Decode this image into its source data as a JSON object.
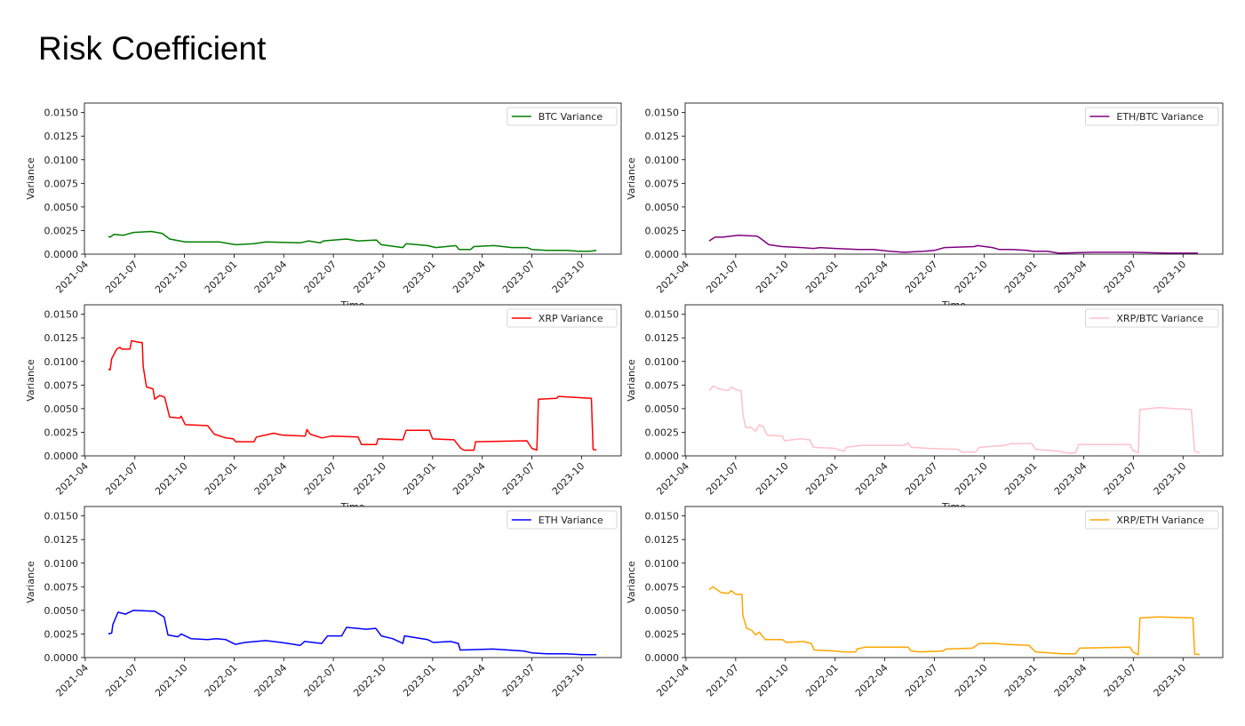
{
  "title": "Risk Coefficient",
  "chart_data": {
    "type": "line",
    "x_unit": "months since 2021-04-01",
    "x_tick_labels": [
      "2021-04",
      "2021-07",
      "2021-10",
      "2022-01",
      "2022-04",
      "2022-07",
      "2022-10",
      "2023-01",
      "2023-04",
      "2023-07",
      "2023-10"
    ],
    "x_tick_values": [
      0,
      3,
      6,
      9,
      12,
      15,
      18,
      21,
      24,
      27,
      30
    ],
    "xlim": [
      -0.05,
      32.4
    ],
    "ylim": [
      0,
      0.016
    ],
    "y_ticks": [
      0,
      0.0025,
      0.005,
      0.0075,
      0.01,
      0.0125,
      0.015
    ],
    "y_tick_labels": [
      "0.0000",
      "0.0025",
      "0.0050",
      "0.0075",
      "0.0100",
      "0.0125",
      "0.0150"
    ],
    "xlabel": "Time",
    "ylabel": "Variance",
    "grid": false,
    "legend_placement": "top-right",
    "panels": [
      {
        "name": "BTC Variance",
        "color": "#008000",
        "show_xlabel": true,
        "points": [
          [
            1.4,
            0.0019
          ],
          [
            1.5,
            0.0018
          ],
          [
            1.74,
            0.0021
          ],
          [
            2.3,
            0.002
          ],
          [
            2.9,
            0.0023
          ],
          [
            4.0,
            0.0024
          ],
          [
            4.65,
            0.0022
          ],
          [
            5.1,
            0.0016
          ],
          [
            6.05,
            0.0013
          ],
          [
            8.1,
            0.0013
          ],
          [
            9.1,
            0.001
          ],
          [
            10.2,
            0.0011
          ],
          [
            10.9,
            0.0013
          ],
          [
            13.0,
            0.0012
          ],
          [
            13.5,
            0.0014
          ],
          [
            14.2,
            0.0012
          ],
          [
            14.4,
            0.0014
          ],
          [
            15.8,
            0.0016
          ],
          [
            16.5,
            0.0014
          ],
          [
            17.6,
            0.0015
          ],
          [
            17.9,
            0.001
          ],
          [
            19.2,
            0.0007
          ],
          [
            19.4,
            0.0011
          ],
          [
            20.7,
            0.0009
          ],
          [
            21.2,
            0.0007
          ],
          [
            22.4,
            0.0009
          ],
          [
            22.6,
            0.0005
          ],
          [
            23.3,
            0.0005
          ],
          [
            23.5,
            0.0008
          ],
          [
            24.7,
            0.0009
          ],
          [
            25.8,
            0.0007
          ],
          [
            26.7,
            0.0007
          ],
          [
            27.0,
            0.0005
          ],
          [
            27.9,
            0.0004
          ],
          [
            29.1,
            0.0004
          ],
          [
            29.8,
            0.0003
          ],
          [
            30.5,
            0.0003
          ],
          [
            30.9,
            0.0004
          ]
        ]
      },
      {
        "name": "ETH/BTC Variance",
        "color": "#800080",
        "show_xlabel": true,
        "points": [
          [
            1.4,
            0.0014
          ],
          [
            1.75,
            0.0018
          ],
          [
            2.2,
            0.0018
          ],
          [
            3.15,
            0.002
          ],
          [
            4.3,
            0.0019
          ],
          [
            4.55,
            0.0016
          ],
          [
            5.0,
            0.001
          ],
          [
            5.8,
            0.0008
          ],
          [
            7.0,
            0.0007
          ],
          [
            7.7,
            0.0006
          ],
          [
            8.1,
            0.0007
          ],
          [
            9.0,
            0.0006
          ],
          [
            10.4,
            0.0005
          ],
          [
            11.3,
            0.0005
          ],
          [
            12.3,
            0.0003
          ],
          [
            13.2,
            0.0002
          ],
          [
            14.35,
            0.0003
          ],
          [
            15.0,
            0.0004
          ],
          [
            15.6,
            0.0007
          ],
          [
            17.4,
            0.0008
          ],
          [
            17.6,
            0.0009
          ],
          [
            18.5,
            0.0007
          ],
          [
            18.9,
            0.0005
          ],
          [
            19.7,
            0.0005
          ],
          [
            20.6,
            0.0004
          ],
          [
            20.9,
            0.0003
          ],
          [
            21.8,
            0.0003
          ],
          [
            22.5,
            0.0001
          ],
          [
            24.5,
            0.0002
          ],
          [
            26.8,
            0.0002
          ],
          [
            29.1,
            0.0001
          ],
          [
            30.9,
            0.0001
          ]
        ]
      },
      {
        "name": "XRP Variance",
        "color": "#ff0000",
        "show_xlabel": true,
        "points": [
          [
            1.4,
            0.0092
          ],
          [
            1.5,
            0.0091
          ],
          [
            1.6,
            0.0103
          ],
          [
            1.9,
            0.0113
          ],
          [
            2.1,
            0.0115
          ],
          [
            2.2,
            0.0113
          ],
          [
            2.7,
            0.0113
          ],
          [
            2.8,
            0.0122
          ],
          [
            3.3,
            0.012
          ],
          [
            3.45,
            0.012
          ],
          [
            3.5,
            0.0095
          ],
          [
            3.7,
            0.0073
          ],
          [
            4.1,
            0.0071
          ],
          [
            4.2,
            0.006
          ],
          [
            4.5,
            0.0064
          ],
          [
            4.8,
            0.0062
          ],
          [
            5.1,
            0.0041
          ],
          [
            5.7,
            0.004
          ],
          [
            5.8,
            0.0042
          ],
          [
            6.05,
            0.0033
          ],
          [
            7.4,
            0.0032
          ],
          [
            7.8,
            0.0023
          ],
          [
            8.5,
            0.0019
          ],
          [
            8.95,
            0.0018
          ],
          [
            9.1,
            0.0015
          ],
          [
            10.2,
            0.0015
          ],
          [
            10.35,
            0.002
          ],
          [
            11.4,
            0.0024
          ],
          [
            11.9,
            0.0022
          ],
          [
            13.3,
            0.0021
          ],
          [
            13.4,
            0.0028
          ],
          [
            13.6,
            0.0023
          ],
          [
            14.3,
            0.0019
          ],
          [
            14.9,
            0.0021
          ],
          [
            16.5,
            0.002
          ],
          [
            16.7,
            0.0012
          ],
          [
            17.6,
            0.0012
          ],
          [
            17.7,
            0.0018
          ],
          [
            19.2,
            0.0017
          ],
          [
            19.4,
            0.0027
          ],
          [
            20.8,
            0.0027
          ],
          [
            21.0,
            0.0018
          ],
          [
            22.3,
            0.0017
          ],
          [
            22.7,
            0.0008
          ],
          [
            22.9,
            0.0006
          ],
          [
            23.5,
            0.0006
          ],
          [
            23.6,
            0.0015
          ],
          [
            26.7,
            0.0016
          ],
          [
            27.0,
            0.0008
          ],
          [
            27.3,
            0.0006
          ],
          [
            27.4,
            0.006
          ],
          [
            28.5,
            0.0061
          ],
          [
            28.6,
            0.0063
          ],
          [
            30.6,
            0.0061
          ],
          [
            30.7,
            0.0007
          ],
          [
            30.9,
            0.0006
          ]
        ]
      },
      {
        "name": "XRP/BTC Variance",
        "color": "#ffc0cb",
        "show_xlabel": true,
        "points": [
          [
            1.4,
            0.0069
          ],
          [
            1.63,
            0.0074
          ],
          [
            2.0,
            0.0071
          ],
          [
            2.56,
            0.0069
          ],
          [
            2.73,
            0.0073
          ],
          [
            3.0,
            0.007
          ],
          [
            3.33,
            0.0069
          ],
          [
            3.43,
            0.0045
          ],
          [
            3.6,
            0.003
          ],
          [
            3.96,
            0.003
          ],
          [
            4.2,
            0.0026
          ],
          [
            4.43,
            0.0033
          ],
          [
            4.66,
            0.0031
          ],
          [
            4.9,
            0.0022
          ],
          [
            5.83,
            0.0021
          ],
          [
            5.94,
            0.0016
          ],
          [
            6.9,
            0.0018
          ],
          [
            7.46,
            0.0017
          ],
          [
            7.7,
            0.0009
          ],
          [
            8.97,
            0.0008
          ],
          [
            9.55,
            0.0005
          ],
          [
            9.67,
            0.0009
          ],
          [
            10.6,
            0.0011
          ],
          [
            13.17,
            0.0011
          ],
          [
            13.4,
            0.0014
          ],
          [
            13.6,
            0.0009
          ],
          [
            14.57,
            0.0008
          ],
          [
            16.4,
            0.0007
          ],
          [
            16.67,
            0.0004
          ],
          [
            17.48,
            0.0004
          ],
          [
            17.7,
            0.0009
          ],
          [
            19.23,
            0.0011
          ],
          [
            19.6,
            0.0013
          ],
          [
            20.86,
            0.0013
          ],
          [
            21.1,
            0.0007
          ],
          [
            22.5,
            0.0005
          ],
          [
            22.96,
            0.0003
          ],
          [
            23.5,
            0.0003
          ],
          [
            23.7,
            0.0012
          ],
          [
            26.8,
            0.0012
          ],
          [
            26.97,
            0.0006
          ],
          [
            27.3,
            0.0003
          ],
          [
            27.4,
            0.0049
          ],
          [
            28.55,
            0.0051
          ],
          [
            30.5,
            0.0049
          ],
          [
            30.7,
            0.0005
          ],
          [
            31.0,
            0.0003
          ]
        ]
      },
      {
        "name": "ETH Variance",
        "color": "#0000ff",
        "show_xlabel": false,
        "points": [
          [
            1.4,
            0.0025
          ],
          [
            1.6,
            0.0026
          ],
          [
            1.67,
            0.0035
          ],
          [
            1.98,
            0.0048
          ],
          [
            2.44,
            0.0046
          ],
          [
            2.9,
            0.005
          ],
          [
            4.2,
            0.0049
          ],
          [
            4.77,
            0.0043
          ],
          [
            5.0,
            0.0024
          ],
          [
            5.6,
            0.0022
          ],
          [
            5.8,
            0.0025
          ],
          [
            6.4,
            0.002
          ],
          [
            7.4,
            0.0019
          ],
          [
            7.9,
            0.002
          ],
          [
            8.5,
            0.0019
          ],
          [
            9.07,
            0.0014
          ],
          [
            9.65,
            0.0016
          ],
          [
            10.9,
            0.0018
          ],
          [
            11.86,
            0.0016
          ],
          [
            13.0,
            0.0013
          ],
          [
            13.26,
            0.0017
          ],
          [
            14.3,
            0.0015
          ],
          [
            14.65,
            0.0023
          ],
          [
            15.5,
            0.0023
          ],
          [
            15.8,
            0.0032
          ],
          [
            17.0,
            0.003
          ],
          [
            17.56,
            0.0031
          ],
          [
            17.9,
            0.0023
          ],
          [
            18.6,
            0.002
          ],
          [
            19.2,
            0.0015
          ],
          [
            19.3,
            0.0023
          ],
          [
            20.7,
            0.0019
          ],
          [
            21.05,
            0.0016
          ],
          [
            22.1,
            0.0017
          ],
          [
            22.56,
            0.0015
          ],
          [
            22.67,
            0.0008
          ],
          [
            24.65,
            0.0009
          ],
          [
            26.5,
            0.0007
          ],
          [
            27.0,
            0.0005
          ],
          [
            27.9,
            0.0004
          ],
          [
            29.07,
            0.0004
          ],
          [
            30.0,
            0.0003
          ],
          [
            30.9,
            0.0003
          ]
        ]
      },
      {
        "name": "XRP/ETH Variance",
        "color": "#ffa500",
        "show_xlabel": false,
        "points": [
          [
            1.4,
            0.0072
          ],
          [
            1.63,
            0.0075
          ],
          [
            2.1,
            0.0069
          ],
          [
            2.56,
            0.0068
          ],
          [
            2.73,
            0.0071
          ],
          [
            3.0,
            0.0067
          ],
          [
            3.38,
            0.0067
          ],
          [
            3.43,
            0.0045
          ],
          [
            3.66,
            0.0031
          ],
          [
            3.96,
            0.0029
          ],
          [
            4.2,
            0.0024
          ],
          [
            4.43,
            0.0027
          ],
          [
            4.78,
            0.0019
          ],
          [
            5.83,
            0.0019
          ],
          [
            6.06,
            0.0016
          ],
          [
            7.1,
            0.0017
          ],
          [
            7.56,
            0.0015
          ],
          [
            7.74,
            0.0008
          ],
          [
            8.97,
            0.0007
          ],
          [
            9.44,
            0.0006
          ],
          [
            10.25,
            0.0006
          ],
          [
            10.32,
            0.0009
          ],
          [
            10.83,
            0.0011
          ],
          [
            13.4,
            0.0011
          ],
          [
            13.6,
            0.0007
          ],
          [
            14.1,
            0.0006
          ],
          [
            15.5,
            0.0007
          ],
          [
            15.7,
            0.0009
          ],
          [
            17.3,
            0.001
          ],
          [
            17.7,
            0.0015
          ],
          [
            18.7,
            0.0015
          ],
          [
            19.3,
            0.0014
          ],
          [
            20.7,
            0.0013
          ],
          [
            21.1,
            0.0006
          ],
          [
            22.7,
            0.0004
          ],
          [
            23.5,
            0.0004
          ],
          [
            23.76,
            0.001
          ],
          [
            26.8,
            0.0011
          ],
          [
            26.97,
            0.0006
          ],
          [
            27.3,
            0.0003
          ],
          [
            27.4,
            0.0042
          ],
          [
            28.55,
            0.0043
          ],
          [
            30.6,
            0.0042
          ],
          [
            30.7,
            0.0004
          ],
          [
            31.0,
            0.0003
          ]
        ]
      }
    ]
  }
}
